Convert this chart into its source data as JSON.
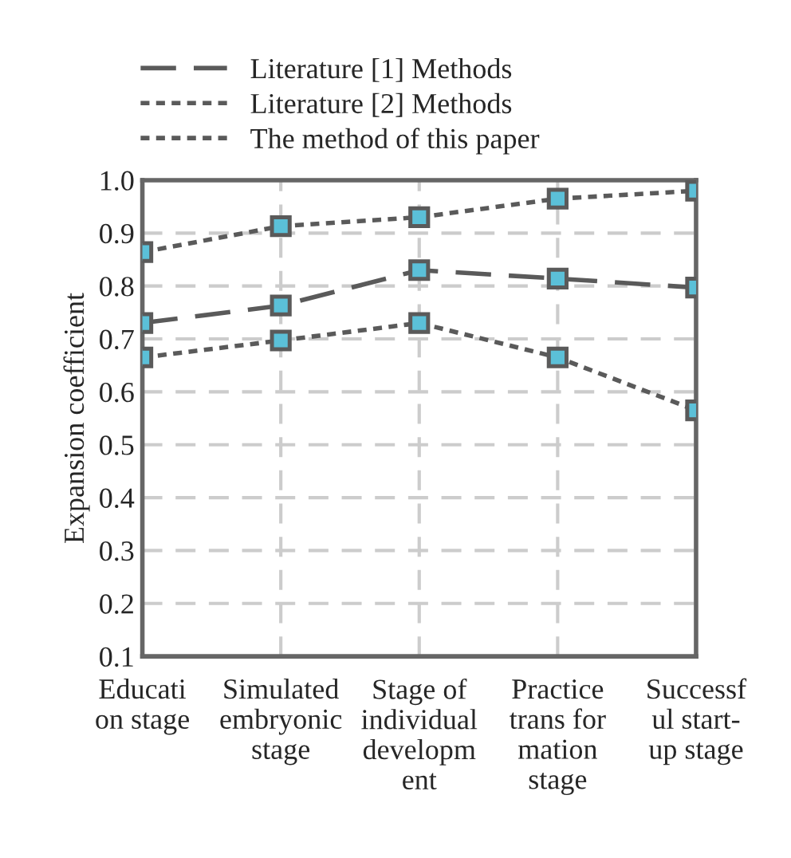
{
  "chart_data": {
    "type": "line",
    "ylabel": "Expansion coefficient",
    "categories": [
      "Educati\non stage",
      "Simulated\nembryonic\nstage",
      "Stage of\nindividual\ndevelopm\nent",
      "Practice\ntrans for\nmation\nstage",
      "Successf\nul start-\nup stage"
    ],
    "series": [
      {
        "name": "Literature [1] Methods",
        "color": "#5a5a5a",
        "line_style": "dashed",
        "values": [
          0.73,
          0.763,
          0.83,
          0.814,
          0.797
        ]
      },
      {
        "name": "Literature [2] Methods",
        "color": "#5a5a5a",
        "line_style": "dotted",
        "values": [
          0.665,
          0.697,
          0.73,
          0.665,
          0.565
        ]
      },
      {
        "name": "The method of this paper",
        "color": "#5a5a5a",
        "line_style": "dotted",
        "values": [
          0.864,
          0.913,
          0.93,
          0.965,
          0.98
        ]
      }
    ],
    "marker": "square",
    "ylim": [
      0.1,
      1.0
    ],
    "yticks": [
      0.1,
      0.2,
      0.3,
      0.4,
      0.5,
      0.6,
      0.7,
      0.8,
      0.9,
      {
        "value": 1.0,
        "label": "1.0"
      }
    ],
    "grid": true,
    "legend": "top"
  }
}
